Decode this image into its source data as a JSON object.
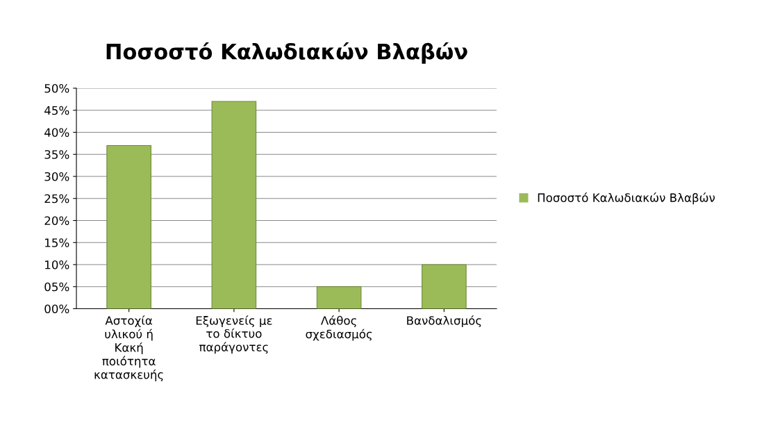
{
  "chart_data": {
    "type": "bar",
    "title": "Ποσοστό Καλωδιακών Βλαβών",
    "categories": [
      "Αστοχία\nυλικού ή\nΚακή\nποιότητα\nκατασκευής",
      "Εξωγενείς με\nτο δίκτυο\nπαράγοντες",
      "Λάθος\nσχεδιασμός",
      "Βανδαλισμός"
    ],
    "series": [
      {
        "name": "Ποσοστό Καλωδιακών Βλαβών",
        "color": "#9bbb59",
        "values": [
          37,
          47,
          5,
          10
        ]
      }
    ],
    "ylim": [
      0,
      50
    ],
    "yticks": [
      {
        "value": 0,
        "label": "00%"
      },
      {
        "value": 5,
        "label": "05%"
      },
      {
        "value": 10,
        "label": "10%"
      },
      {
        "value": 15,
        "label": "15%"
      },
      {
        "value": 20,
        "label": "20%"
      },
      {
        "value": 25,
        "label": "25%"
      },
      {
        "value": 30,
        "label": "30%"
      },
      {
        "value": 35,
        "label": "35%"
      },
      {
        "value": 40,
        "label": "40%"
      },
      {
        "value": 45,
        "label": "45%"
      },
      {
        "value": 50,
        "label": "50%"
      }
    ],
    "grid": "y",
    "legend": "right"
  }
}
